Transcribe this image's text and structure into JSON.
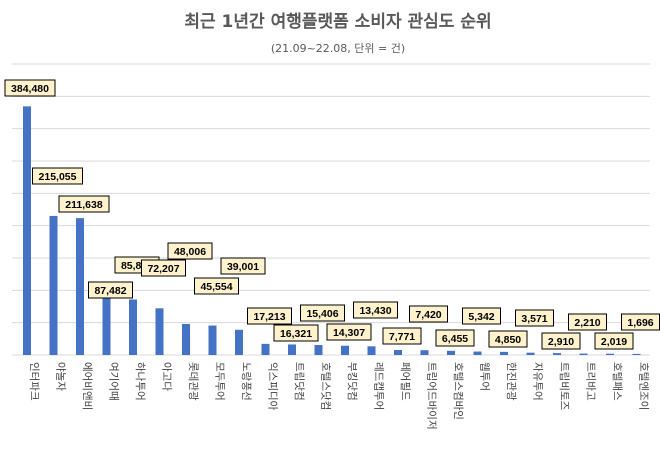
{
  "chart_data": {
    "type": "bar",
    "title": "최근 1년간 여행플랫폼 소비자 관심도 순위",
    "subtitle": "(21.09~22.08, 단위 = 건)",
    "categories": [
      "인터파크",
      "야놀자",
      "에어비앤비",
      "여기어때",
      "하나투어",
      "아고다",
      "롯데관광",
      "모두투어",
      "노랑풍선",
      "익스피디아",
      "트립닷컴",
      "호텔스닷컴",
      "부킹닷컴",
      "레드캡투어",
      "페어필드",
      "트립어드바이저",
      "호텔스컴바인",
      "웹투어",
      "한진관광",
      "자유투어",
      "트립비토즈",
      "트리바고",
      "호텔패스",
      "호텔엔조이"
    ],
    "values": [
      384480,
      215055,
      211638,
      87482,
      85835,
      72207,
      48006,
      45554,
      39001,
      17213,
      16321,
      15406,
      14307,
      13430,
      7771,
      7420,
      6455,
      5342,
      4850,
      3571,
      2910,
      2210,
      2019,
      1696
    ],
    "data_labels": [
      "384,480",
      "215,055",
      "211,638",
      "87,482",
      "85,835",
      "72,207",
      "48,006",
      "45,554",
      "39,001",
      "17,213",
      "16,321",
      "15,406",
      "14,307",
      "13,430",
      "7,771",
      "7,420",
      "6,455",
      "5,342",
      "4,850",
      "3,571",
      "2,910",
      "2,210",
      "2,019",
      "1,696"
    ],
    "xlabel": "",
    "ylabel": "",
    "ylim": [
      0,
      450000
    ],
    "ytick_step": 50000,
    "y_tick_labels_shown": false,
    "grid": true,
    "legend": "none",
    "colors": {
      "bar": "#4472C4",
      "label_fill": "#FFF2CC",
      "grid": "#D9D9D9"
    }
  }
}
